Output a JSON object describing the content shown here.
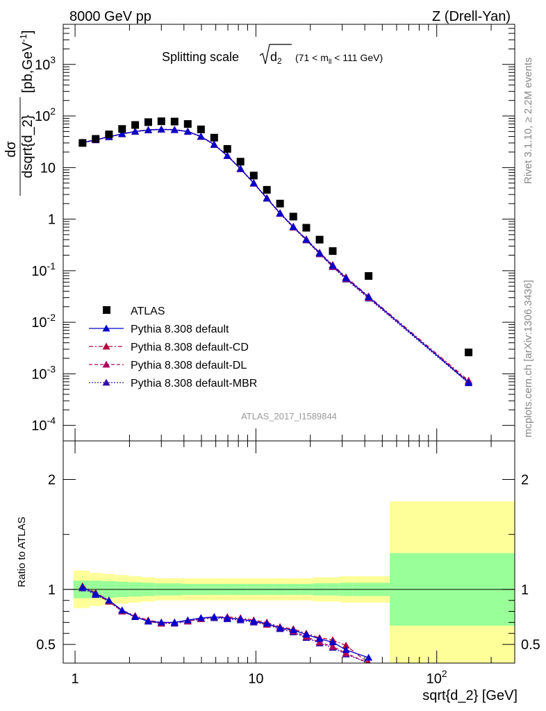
{
  "header": {
    "left": "8000 GeV pp",
    "right": "Z (Drell-Yan)"
  },
  "side_labels": {
    "rivet": "Rivet 3.1.10, ≥ 2.2M events",
    "mcplots": "mcplots.cern.ch [arXiv:1306.3436]"
  },
  "main_panel": {
    "title_main": "Splitting scale",
    "title_sub": "2",
    "title_cut": "(71 < m",
    "title_cut_sub": "ll",
    "title_cut_end": " < 111 GeV)",
    "ylabel_num": "dσ",
    "ylabel_den": "dsqrt{d_2}",
    "ylabel_units": "[pb,GeV",
    "ylabel_units_sup": "-1",
    "ylabel_units_end": "]",
    "watermark": "ATLAS_2017_I1589844",
    "yticks": [
      {
        "label": "10",
        "exp": "-4",
        "value": 0.0001
      },
      {
        "label": "10",
        "exp": "-3",
        "value": 0.001
      },
      {
        "label": "10",
        "exp": "-2",
        "value": 0.01
      },
      {
        "label": "10",
        "exp": "-1",
        "value": 0.1
      },
      {
        "label": "1",
        "exp": "",
        "value": 1
      },
      {
        "label": "10",
        "exp": "",
        "value": 10
      },
      {
        "label": "10",
        "exp": "2",
        "value": 100
      },
      {
        "label": "10",
        "exp": "3",
        "value": 1000
      }
    ]
  },
  "ratio_panel": {
    "ylabel": "Ratio to ATLAS",
    "yticks": [
      {
        "label": "0.5",
        "value": 0.5
      },
      {
        "label": "1",
        "value": 1
      },
      {
        "label": "2",
        "value": 2
      }
    ]
  },
  "xaxis": {
    "label": "sqrt{d_2} [GeV]",
    "ticks": [
      {
        "label": "1",
        "exp": "",
        "value": 1
      },
      {
        "label": "10",
        "exp": "",
        "value": 10
      },
      {
        "label": "10",
        "exp": "2",
        "value": 100
      }
    ]
  },
  "legend": [
    {
      "label": "ATLAS",
      "color": "#000000",
      "style": "data"
    },
    {
      "label": "Pythia 8.308 default",
      "color": "#0000cc",
      "style": "solid"
    },
    {
      "label": "Pythia 8.308 default-CD",
      "color": "#b0003c",
      "style": "dashdot"
    },
    {
      "label": "Pythia 8.308 default-DL",
      "color": "#b0005a",
      "style": "dashed"
    },
    {
      "label": "Pythia 8.308 default-MBR",
      "color": "#3311aa",
      "style": "dotted"
    }
  ],
  "chart_data": {
    "type": "scatter",
    "title": "Splitting scale sqrt(d2) (71 < mll < 111 GeV)",
    "xlabel": "sqrt{d_2} [GeV]",
    "ylabel": "dσ/dsqrt{d_2} [pb,GeV^-1]",
    "x_scale": "log",
    "y_scale": "log",
    "xlim": [
      0.86,
      270
    ],
    "ylim": [
      5e-05,
      6000
    ],
    "ratio_ylim": [
      0.33,
      2.35
    ],
    "x": [
      1.1,
      1.3,
      1.54,
      1.82,
      2.15,
      2.54,
      3.0,
      3.55,
      4.2,
      4.97,
      5.88,
      6.95,
      8.22,
      9.73,
      11.5,
      13.6,
      16.1,
      19.0,
      22.5,
      26.6,
      31.5,
      42.0,
      150.0
    ],
    "bins": [
      0.98,
      1.2,
      1.42,
      1.68,
      1.98,
      2.34,
      2.77,
      3.27,
      3.87,
      4.58,
      5.42,
      6.41,
      7.58,
      8.97,
      10.6,
      12.5,
      14.8,
      17.5,
      20.7,
      24.5,
      29.0,
      34.3,
      55.0,
      270.0
    ],
    "series": [
      {
        "name": "ATLAS",
        "values": [
          30.0,
          36.0,
          44.0,
          56.0,
          67.0,
          76.0,
          79.0,
          78.0,
          70.0,
          55.0,
          38.0,
          23.0,
          13.0,
          7.0,
          3.7,
          2.0,
          1.12,
          0.68,
          0.4,
          0.24,
          null,
          0.079,
          0.0026
        ],
        "stat_band": [
          0.08,
          0.08,
          0.075,
          0.07,
          0.065,
          0.06,
          0.055,
          0.055,
          0.05,
          0.05,
          0.05,
          0.05,
          0.05,
          0.05,
          0.05,
          0.05,
          0.05,
          0.05,
          0.055,
          0.055,
          0.06,
          0.06,
          0.33
        ],
        "total_band": [
          0.17,
          0.15,
          0.14,
          0.13,
          0.12,
          0.11,
          0.1,
          0.1,
          0.1,
          0.1,
          0.1,
          0.1,
          0.1,
          0.1,
          0.1,
          0.1,
          0.1,
          0.1,
          0.11,
          0.11,
          0.12,
          0.12,
          0.8
        ]
      },
      {
        "name": "Pythia 8.308 default",
        "values": [
          30.5,
          34.5,
          39.5,
          45.0,
          50.0,
          53.5,
          55.0,
          54.0,
          50.0,
          40.0,
          28.0,
          17.0,
          9.5,
          5.0,
          2.55,
          1.3,
          0.71,
          0.4,
          0.22,
          0.125,
          0.072,
          0.031,
          0.00068
        ],
        "ratio": [
          1.02,
          0.96,
          0.9,
          0.81,
          0.75,
          0.71,
          0.7,
          0.7,
          0.72,
          0.74,
          0.75,
          0.74,
          0.73,
          0.71,
          0.69,
          0.65,
          0.63,
          0.59,
          0.55,
          0.52,
          0.45,
          0.38,
          null
        ]
      },
      {
        "name": "Pythia 8.308 default-CD",
        "values": [
          30.8,
          34.8,
          39.8,
          45.2,
          50.5,
          54.0,
          55.5,
          54.5,
          50.5,
          40.5,
          28.3,
          17.2,
          9.6,
          5.05,
          2.58,
          1.32,
          0.72,
          0.41,
          0.225,
          0.13,
          0.075,
          0.032,
          0.00074
        ],
        "ratio": [
          1.03,
          0.97,
          0.9,
          0.81,
          0.76,
          0.72,
          0.7,
          0.7,
          0.72,
          0.74,
          0.75,
          0.75,
          0.74,
          0.72,
          0.7,
          0.66,
          0.64,
          0.6,
          0.56,
          0.54,
          0.49,
          0.33,
          null
        ]
      },
      {
        "name": "Pythia 8.308 default-DL",
        "values": [
          30.3,
          34.3,
          39.3,
          44.8,
          49.8,
          53.3,
          54.8,
          53.8,
          49.8,
          39.8,
          27.8,
          16.9,
          9.4,
          4.95,
          2.53,
          1.29,
          0.7,
          0.395,
          0.215,
          0.12,
          0.07,
          0.03,
          0.00071
        ],
        "ratio": [
          1.02,
          0.96,
          0.89,
          0.8,
          0.75,
          0.71,
          0.69,
          0.7,
          0.71,
          0.73,
          0.75,
          0.74,
          0.73,
          0.71,
          0.68,
          0.65,
          0.62,
          0.57,
          0.52,
          0.48,
          0.42,
          0.33,
          null
        ]
      },
      {
        "name": "Pythia 8.308 default-MBR",
        "values": [
          30.0,
          34.0,
          39.0,
          44.5,
          49.5,
          53.0,
          54.5,
          53.5,
          49.5,
          39.5,
          27.6,
          16.8,
          9.35,
          4.9,
          2.5,
          1.27,
          0.69,
          0.39,
          0.21,
          0.118,
          0.068,
          0.029,
          0.00066
        ],
        "ratio": [
          1.01,
          0.95,
          0.89,
          0.8,
          0.75,
          0.71,
          0.69,
          0.69,
          0.71,
          0.73,
          0.74,
          0.73,
          0.72,
          0.7,
          0.68,
          0.64,
          0.61,
          0.56,
          0.51,
          0.47,
          0.41,
          0.33,
          null
        ]
      }
    ]
  }
}
